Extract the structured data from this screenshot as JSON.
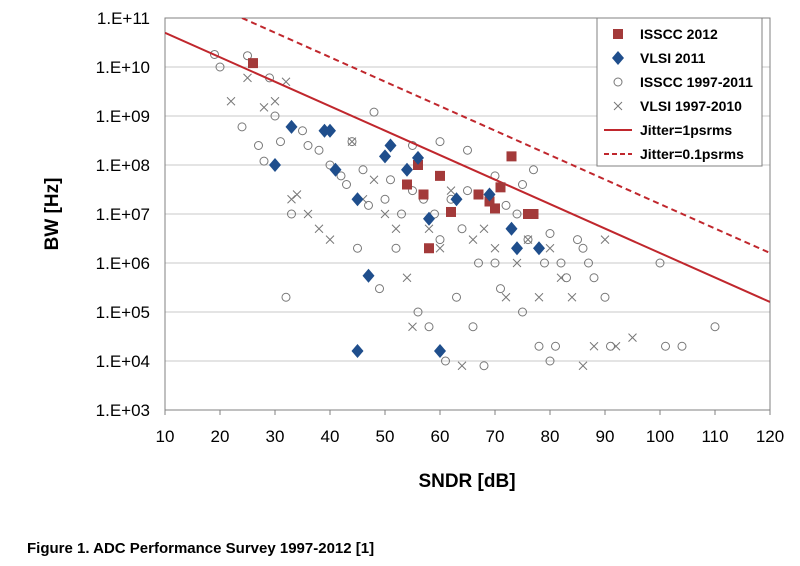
{
  "caption": "Figure 1. ADC Performance Survey 1997-2012 [1]",
  "chart_data": {
    "type": "scatter",
    "xlabel": "SNDR [dB]",
    "ylabel": "BW [Hz]",
    "xlim": [
      10,
      120
    ],
    "ylim": [
      1000,
      100000000000
    ],
    "y_scale": "log",
    "grid": "horizontal",
    "legend_position": "top-right",
    "x_ticks": [
      "10",
      "20",
      "30",
      "40",
      "50",
      "60",
      "70",
      "80",
      "90",
      "100",
      "110",
      "120"
    ],
    "y_ticks": [
      "1.E+03",
      "1.E+04",
      "1.E+05",
      "1.E+06",
      "1.E+07",
      "1.E+08",
      "1.E+09",
      "1.E+10",
      "1.E+11"
    ],
    "series": [
      {
        "name": "ISSCC 2012",
        "marker": "square",
        "color": "#a33a3a",
        "points": [
          [
            26,
            12000000000.0
          ],
          [
            54,
            40000000.0
          ],
          [
            56,
            100000000.0
          ],
          [
            57,
            25000000.0
          ],
          [
            58,
            2000000.0
          ],
          [
            60,
            60000000.0
          ],
          [
            62,
            11000000.0
          ],
          [
            67,
            25000000.0
          ],
          [
            69,
            18000000.0
          ],
          [
            70,
            13000000.0
          ],
          [
            71,
            35000000.0
          ],
          [
            73,
            150000000.0
          ],
          [
            76,
            10000000.0
          ],
          [
            77,
            10000000.0
          ]
        ]
      },
      {
        "name": "VLSI 2011",
        "marker": "diamond",
        "color": "#1f4e8c",
        "points": [
          [
            30,
            100000000.0
          ],
          [
            33,
            600000000.0
          ],
          [
            39,
            500000000.0
          ],
          [
            40,
            500000000.0
          ],
          [
            41,
            80000000.0
          ],
          [
            45,
            20000000.0
          ],
          [
            45,
            16000.0
          ],
          [
            47,
            550000.0
          ],
          [
            50,
            150000000.0
          ],
          [
            51,
            250000000.0
          ],
          [
            54,
            80000000.0
          ],
          [
            56,
            140000000.0
          ],
          [
            58,
            8000000.0
          ],
          [
            60,
            16000.0
          ],
          [
            63,
            20000000.0
          ],
          [
            69,
            25000000.0
          ],
          [
            73,
            5000000.0
          ],
          [
            74,
            2000000.0
          ],
          [
            78,
            2000000.0
          ]
        ]
      },
      {
        "name": "ISSCC 1997-2011",
        "marker": "circle",
        "color": "#777777",
        "points": [
          [
            19,
            18000000000.0
          ],
          [
            20,
            10000000000.0
          ],
          [
            24,
            600000000.0
          ],
          [
            25,
            17000000000.0
          ],
          [
            27,
            250000000.0
          ],
          [
            28,
            120000000.0
          ],
          [
            29,
            6000000000.0
          ],
          [
            30,
            1000000000.0
          ],
          [
            31,
            300000000.0
          ],
          [
            32,
            200000.0
          ],
          [
            33,
            10000000.0
          ],
          [
            35,
            500000000.0
          ],
          [
            36,
            250000000.0
          ],
          [
            38,
            200000000.0
          ],
          [
            40,
            100000000.0
          ],
          [
            42,
            60000000.0
          ],
          [
            43,
            40000000.0
          ],
          [
            44,
            300000000.0
          ],
          [
            45,
            2000000.0
          ],
          [
            46,
            80000000.0
          ],
          [
            47,
            15000000.0
          ],
          [
            48,
            1200000000.0
          ],
          [
            49,
            300000.0
          ],
          [
            50,
            20000000.0
          ],
          [
            51,
            50000000.0
          ],
          [
            52,
            2000000.0
          ],
          [
            53,
            10000000.0
          ],
          [
            55,
            30000000.0
          ],
          [
            56,
            100000.0
          ],
          [
            57,
            20000000.0
          ],
          [
            58,
            50000.0
          ],
          [
            59,
            10000000.0
          ],
          [
            60,
            3000000.0
          ],
          [
            61,
            10000.0
          ],
          [
            62,
            20000000.0
          ],
          [
            63,
            200000.0
          ],
          [
            64,
            5000000.0
          ],
          [
            65,
            30000000.0
          ],
          [
            66,
            50000.0
          ],
          [
            67,
            1000000.0
          ],
          [
            68,
            8000.0
          ],
          [
            69,
            20000000.0
          ],
          [
            70,
            1000000.0
          ],
          [
            71,
            300000.0
          ],
          [
            72,
            15000000.0
          ],
          [
            73,
            5000000.0
          ],
          [
            74,
            10000000.0
          ],
          [
            75,
            100000.0
          ],
          [
            76,
            3000000.0
          ],
          [
            77,
            80000000.0
          ],
          [
            78,
            20000.0
          ],
          [
            79,
            1000000.0
          ],
          [
            80,
            10000.0
          ],
          [
            81,
            20000.0
          ],
          [
            82,
            1000000.0
          ],
          [
            83,
            500000.0
          ],
          [
            85,
            3000000.0
          ],
          [
            86,
            2000000.0
          ],
          [
            87,
            1000000.0
          ],
          [
            88,
            500000.0
          ],
          [
            90,
            200000.0
          ],
          [
            91,
            20000.0
          ],
          [
            100,
            1000000.0
          ],
          [
            101,
            20000.0
          ],
          [
            104,
            20000.0
          ],
          [
            110,
            50000.0
          ],
          [
            55,
            250000000.0
          ],
          [
            60,
            300000000.0
          ],
          [
            65,
            200000000.0
          ],
          [
            70,
            60000000.0
          ],
          [
            75,
            40000000.0
          ],
          [
            80,
            4000000.0
          ]
        ]
      },
      {
        "name": "VLSI 1997-2010",
        "marker": "x",
        "color": "#777777",
        "points": [
          [
            22,
            2000000000.0
          ],
          [
            25,
            6000000000.0
          ],
          [
            28,
            1500000000.0
          ],
          [
            30,
            2000000000.0
          ],
          [
            32,
            5000000000.0
          ],
          [
            33,
            20000000.0
          ],
          [
            34,
            25000000.0
          ],
          [
            36,
            10000000.0
          ],
          [
            38,
            5000000.0
          ],
          [
            40,
            3000000.0
          ],
          [
            44,
            300000000.0
          ],
          [
            46,
            20000000.0
          ],
          [
            48,
            50000000.0
          ],
          [
            50,
            10000000.0
          ],
          [
            52,
            5000000.0
          ],
          [
            54,
            500000.0
          ],
          [
            55,
            50000.0
          ],
          [
            58,
            5000000.0
          ],
          [
            60,
            2000000.0
          ],
          [
            62,
            30000000.0
          ],
          [
            64,
            8000.0
          ],
          [
            66,
            3000000.0
          ],
          [
            68,
            5000000.0
          ],
          [
            70,
            2000000.0
          ],
          [
            72,
            200000.0
          ],
          [
            74,
            1000000.0
          ],
          [
            76,
            3000000.0
          ],
          [
            78,
            200000.0
          ],
          [
            80,
            2000000.0
          ],
          [
            82,
            500000.0
          ],
          [
            84,
            200000.0
          ],
          [
            86,
            8000.0
          ],
          [
            88,
            20000.0
          ],
          [
            90,
            3000000.0
          ],
          [
            92,
            20000.0
          ],
          [
            95,
            30000.0
          ]
        ]
      },
      {
        "name": "Jitter=1psrms",
        "marker": "line",
        "color": "#c0272d",
        "dash": "solid",
        "points": [
          [
            10,
            50000000000.0
          ],
          [
            120,
            160000.0
          ]
        ]
      },
      {
        "name": "Jitter=0.1psrms",
        "marker": "line",
        "color": "#c0272d",
        "dash": "dashed",
        "points": [
          [
            24,
            100000000000.0
          ],
          [
            120,
            1600000.0
          ]
        ]
      }
    ]
  }
}
